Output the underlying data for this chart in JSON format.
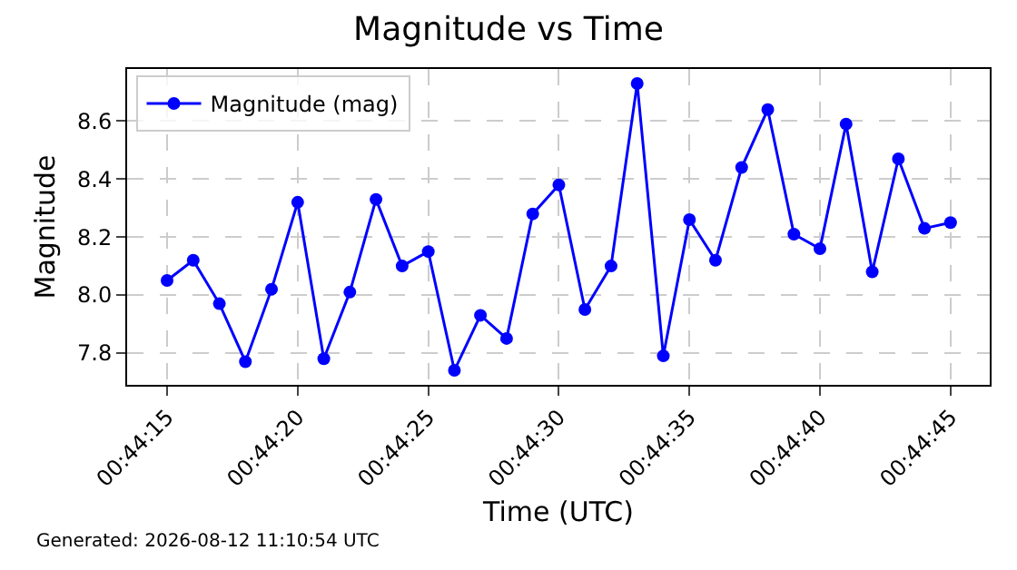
{
  "chart_data": {
    "type": "line",
    "title": "Magnitude vs Time",
    "xlabel": "Time (UTC)",
    "ylabel": "Magnitude",
    "x": [
      0.7375,
      0.737778,
      0.738056,
      0.738333,
      0.738611,
      0.738889,
      0.739167,
      0.739444,
      0.739722,
      0.74,
      0.740278,
      0.740556,
      0.740833,
      0.741111,
      0.741389,
      0.741667,
      0.741944,
      0.742222,
      0.7425,
      0.742778,
      0.743056,
      0.743333,
      0.743611,
      0.743889,
      0.744167,
      0.744444,
      0.744722,
      0.745,
      0.745278,
      0.745556,
      0.745833
    ],
    "series": [
      {
        "name": "Magnitude (mag)",
        "color": "#0000ff",
        "values": [
          8.05,
          8.12,
          7.97,
          7.77,
          8.02,
          8.32,
          7.78,
          8.01,
          8.33,
          8.1,
          8.15,
          7.74,
          7.93,
          7.85,
          8.28,
          8.38,
          7.95,
          8.1,
          8.73,
          7.79,
          8.26,
          8.12,
          8.44,
          8.64,
          8.21,
          8.16,
          8.59,
          8.08,
          8.47,
          8.23,
          8.25
        ]
      }
    ],
    "xlim": [
      0.737075,
      0.74625
    ],
    "xticks": [
      {
        "value": 0.7375,
        "label": "00:44:15"
      },
      {
        "value": 0.738889,
        "label": "00:44:20"
      },
      {
        "value": 0.740278,
        "label": "00:44:25"
      },
      {
        "value": 0.741667,
        "label": "00:44:30"
      },
      {
        "value": 0.743056,
        "label": "00:44:35"
      },
      {
        "value": 0.744444,
        "label": "00:44:40"
      },
      {
        "value": 0.745833,
        "label": "00:44:45"
      }
    ],
    "ylim": [
      7.69,
      8.78
    ],
    "yticks": [
      {
        "value": 7.8,
        "label": "7.8"
      },
      {
        "value": 8.0,
        "label": "8.0"
      },
      {
        "value": 8.2,
        "label": "8.2"
      },
      {
        "value": 8.4,
        "label": "8.4"
      },
      {
        "value": 8.6,
        "label": "8.6"
      }
    ],
    "grid": true,
    "legend": "top left",
    "marker": "circle",
    "line_style": "solid",
    "annotations": [
      "Generated: 2026-08-12 11:10:54 UTC"
    ]
  }
}
